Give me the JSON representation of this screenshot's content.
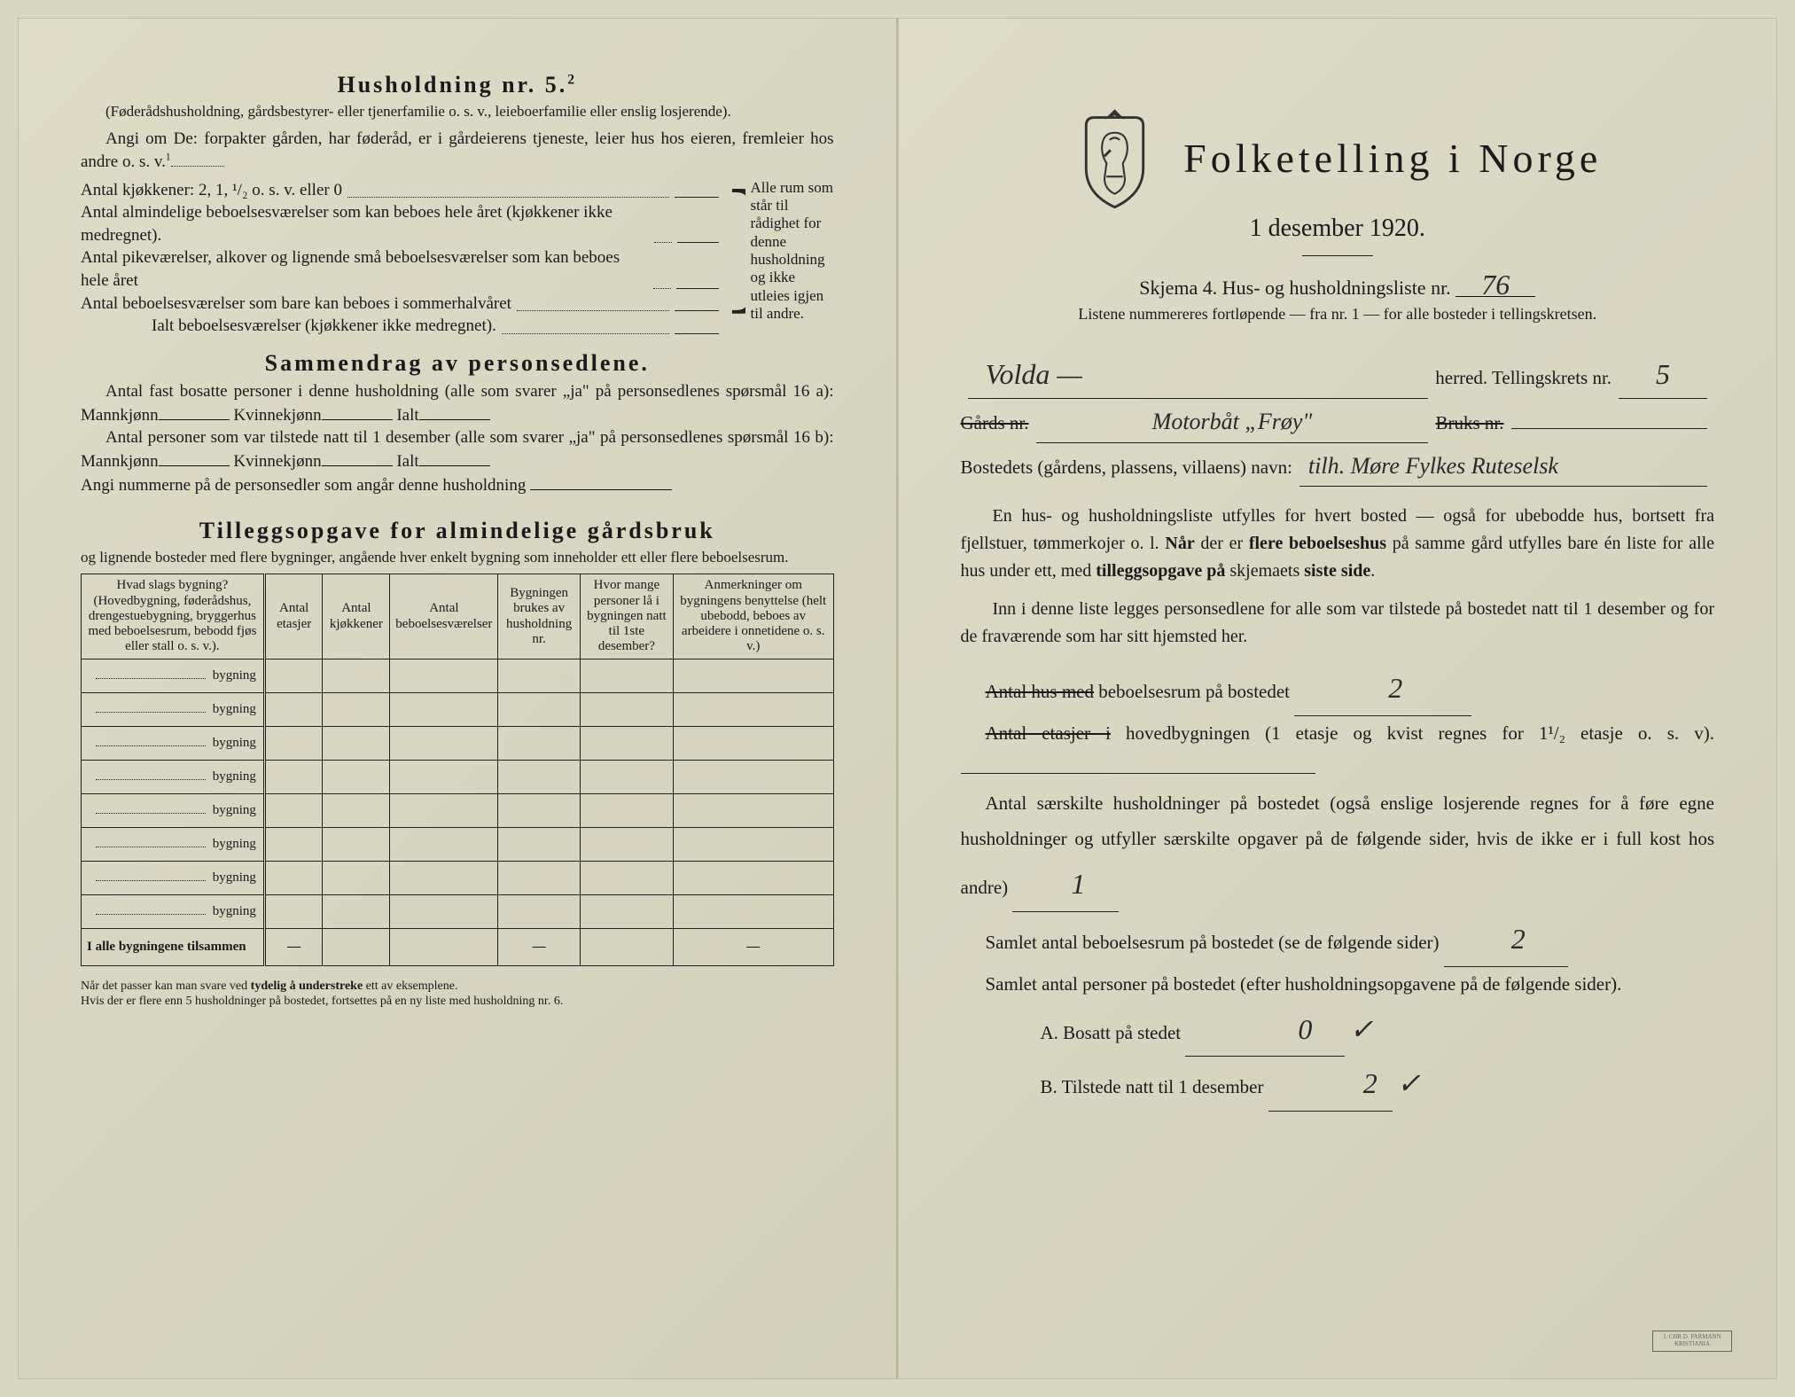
{
  "left": {
    "husholdning_title": "Husholdning nr. 5.",
    "husholdning_sup": "2",
    "husholdning_note": "(Føderådshusholdning, gårdsbestyrer- eller tjenerfamilie o. s. v., leieboerfamilie eller enslig losjerende).",
    "angi_intro": "Angi om De: forpakter gården, har føderåd, er i gårdeierens tjeneste, leier hus hos eieren, fremleier hos andre o. s. v.",
    "angi_sup": "1",
    "brace_rows": [
      "Antal kjøkkener: 2, 1, ¹/₂ o. s. v. eller 0",
      "Antal almindelige beboelsesværelser som kan beboes hele året (kjøkkener ikke medregnet).",
      "Antal pikeværelser, alkover og lignende små beboelsesværelser som kan beboes hele året",
      "Antal beboelsesværelser som bare kan beboes i sommerhalvåret",
      "Ialt beboelsesværelser (kjøkkener ikke medregnet)."
    ],
    "brace_side": "Alle rum som står til rådighet for denne husholdning og ikke utleies igjen til andre.",
    "sammendrag_title": "Sammendrag av personsedlene.",
    "sammendrag_l1a": "Antal fast bosatte personer i denne husholdning (alle som svarer „ja\" på personsedlenes spørsmål 16 a): Mannkjønn",
    "sammendrag_l1b": "Kvinnekjønn",
    "sammendrag_l1c": "Ialt",
    "sammendrag_l2a": "Antal personer som var tilstede natt til 1 desember (alle som svarer „ja\" på personsedlenes spørsmål 16 b): Mannkjønn",
    "angi_nummer": "Angi nummerne på de personsedler som angår denne husholdning",
    "tillegg_title": "Tilleggsopgave for almindelige gårdsbruk",
    "tillegg_sub": "og lignende bosteder med flere bygninger, angående hver enkelt bygning som inneholder ett eller flere beboelsesrum.",
    "table": {
      "headers": [
        "Hvad slags bygning?\n(Hovedbygning, føderådshus, drengestuebygning, bryggerhus med beboelsesrum, bebodd fjøs eller stall o. s. v.).",
        "Antal etasjer",
        "Antal kjøkkener",
        "Antal beboelsesværelser",
        "Bygningen brukes av husholdning nr.",
        "Hvor mange personer lå i bygningen natt til 1ste desember?",
        "Anmerkninger om bygningens benyttelse (helt ubebodd, beboes av arbeidere i onnetidene o. s. v.)"
      ],
      "row_label": "bygning",
      "row_count": 8,
      "total_label": "I alle bygningene tilsammen"
    },
    "footnote": "Når det passer kan man svare ved tydelig å understreke ett av eksemplene.\nHvis der er flere enn 5 husholdninger på bostedet, fortsettes på en ny liste med husholdning nr. 6."
  },
  "right": {
    "title": "Folketelling i Norge",
    "date": "1 desember 1920.",
    "skjema": "Skjema 4.  Hus- og husholdningsliste nr.",
    "skjema_nr": "76",
    "list_note": "Listene nummereres fortløpende — fra nr. 1 — for alle bosteder i tellingskretsen.",
    "herred_value": "Volda —",
    "herred_label": "herred.  Tellingskrets nr.",
    "krets_nr": "5",
    "gards_label": "Gårds nr.",
    "bruks_label": "Bruks nr.",
    "gards_hw": "Motorbåt „Frøy\"",
    "bosted_label": "Bostedets (gårdens, plassens, villaens) navn:",
    "bosted_hw": "tilh. Møre Fylkes Ruteselsk",
    "para1": "En hus- og husholdningsliste utfylles for hvert bosted — også for ubebodde hus, bortsett fra fjellstuer, tømmerkojer o. l.  Når der er flere beboelseshus på samme gård utfylles bare én liste for alle hus under ett, med tilleggsopgave på skjemaets siste side.",
    "para2": "Inn i denne liste legges personsedlene for alle som var tilstede på bostedet natt til 1 desember og for de fraværende som har sitt hjemsted her.",
    "q1_a": "Antal hus med",
    "q1_b": " beboelsesrum på bostedet",
    "q1_val": "2",
    "q2_a": "Antal etasjer i",
    "q2_b": " hovedbygningen (1 etasje og kvist regnes for 1¹/₂ etasje o. s. v).",
    "q3": "Antal særskilte husholdninger på bostedet (også enslige losjerende regnes for å føre egne husholdninger og utfyller særskilte opgaver på de følgende sider, hvis de ikke er i full kost hos andre)",
    "q3_val": "1",
    "q4": "Samlet antal beboelsesrum på bostedet (se de følgende sider)",
    "q4_val": "2",
    "q5": "Samlet antal personer på bostedet (efter husholdningsopgavene på de følgende sider).",
    "qA": "A.  Bosatt på stedet",
    "qA_val": "0",
    "qB": "B.  Tilstede natt til 1 desember",
    "qB_val": "2",
    "qB_check": "✓",
    "printer": "J. CHR D. PARMANN KRISTIANIA"
  },
  "colors": {
    "paper": "#d8d7c2",
    "ink": "#1a1a1a",
    "handwriting": "#2a2a2a",
    "border": "#222222"
  }
}
